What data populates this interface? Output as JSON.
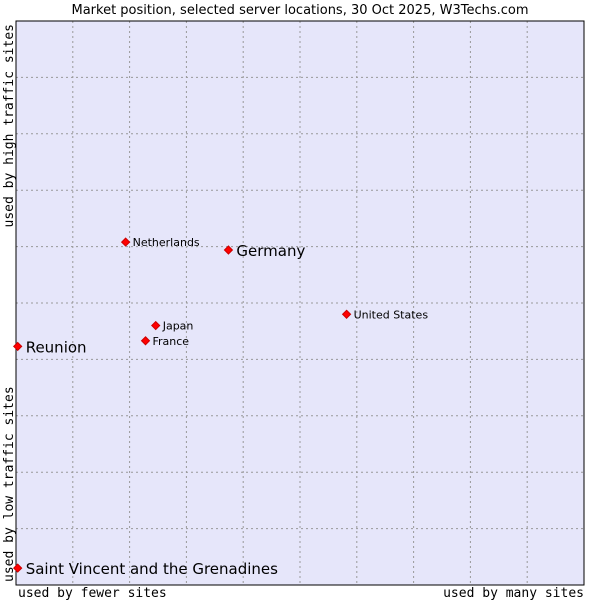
{
  "chart_data": {
    "type": "scatter",
    "title": "Market position, selected server locations, 30 Oct 2025, W3Techs.com",
    "xlabel_left": "used by fewer sites",
    "xlabel_right": "used by many sites",
    "ylabel_bottom": "used by low traffic sites",
    "ylabel_top": "used by high traffic sites",
    "xlim": [
      0,
      100
    ],
    "ylim": [
      0,
      100
    ],
    "grid": true,
    "colors": {
      "plot_background": "#e6e6fa",
      "grid": "#999999",
      "border": "#000000",
      "marker": "#ff0000",
      "marker_edge": "#cc0000"
    },
    "points": [
      {
        "name": "Netherlands",
        "x": 19.3,
        "y": 60.8,
        "emphasis": false
      },
      {
        "name": "Germany",
        "x": 37.4,
        "y": 59.4,
        "emphasis": true
      },
      {
        "name": "United States",
        "x": 58.2,
        "y": 48.0,
        "emphasis": false
      },
      {
        "name": "Japan",
        "x": 24.6,
        "y": 46.0,
        "emphasis": false
      },
      {
        "name": "France",
        "x": 22.8,
        "y": 43.3,
        "emphasis": false
      },
      {
        "name": "Reunion",
        "x": 0.3,
        "y": 42.3,
        "emphasis": true
      },
      {
        "name": "Saint Vincent and the Grenadines",
        "x": 0.3,
        "y": 3.0,
        "emphasis": true
      }
    ]
  }
}
